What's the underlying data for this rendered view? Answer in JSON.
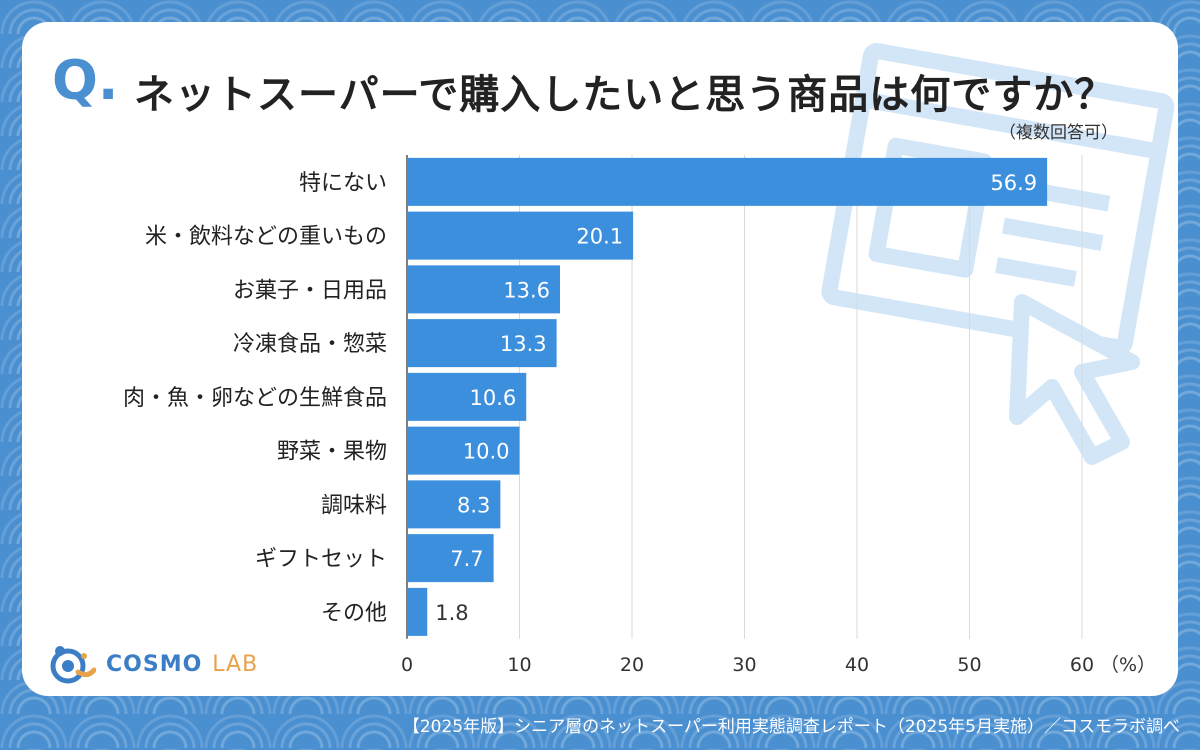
{
  "header": {
    "q_mark": "Q.",
    "title": "ネットスーパーで購入したいと思う商品は何ですか？",
    "subtitle": "（複数回答可）"
  },
  "logo": {
    "cosmo": "COSMO",
    "lab": "LAB"
  },
  "footer": {
    "source": "【2025年版】シニア層のネットスーパー利用実態調査レポート（2025年5月実施）／コスモラボ調べ"
  },
  "colors": {
    "bar": "#3b8fdc",
    "accent": "#4a8fd0",
    "grid": "#d9d9d9",
    "background": "#4a8fd0"
  },
  "chart_data": {
    "type": "bar",
    "orientation": "horizontal",
    "categories": [
      "特にない",
      "米・飲料などの重いもの",
      "お菓子・日用品",
      "冷凍食品・惣菜",
      "肉・魚・卵などの生鮮食品",
      "野菜・果物",
      "調味料",
      "ギフトセット",
      "その他"
    ],
    "values": [
      56.9,
      20.1,
      13.6,
      13.3,
      10.6,
      10.0,
      8.3,
      7.7,
      1.8
    ],
    "value_labels": [
      "56.9",
      "20.1",
      "13.6",
      "13.3",
      "10.6",
      "10.0",
      "8.3",
      "7.7",
      "1.8"
    ],
    "xlim": [
      0,
      60
    ],
    "xticks": [
      0,
      10,
      20,
      30,
      40,
      50,
      60
    ],
    "xtick_labels": [
      "0",
      "10",
      "20",
      "30",
      "40",
      "50",
      "60"
    ],
    "unit_label": "（%）",
    "grid": true
  }
}
